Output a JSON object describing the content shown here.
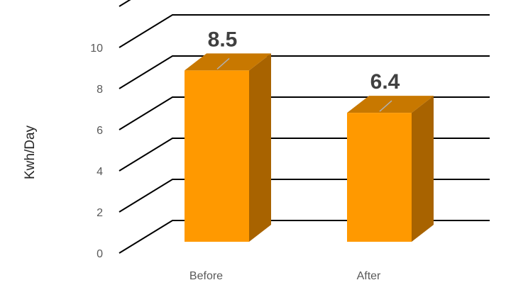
{
  "chart_data": {
    "type": "bar",
    "style": "3d-column",
    "categories": [
      "Before",
      "After"
    ],
    "values": [
      8.5,
      6.4
    ],
    "data_labels": [
      "8.5",
      "6.4"
    ],
    "title": "",
    "xlabel": "",
    "ylabel": "Kwh/Day",
    "ylim": [
      0,
      10
    ],
    "yticks": [
      0,
      2,
      4,
      6,
      8,
      10
    ],
    "grid": true,
    "legend": "none",
    "colors": {
      "bar_front": "#FF9900",
      "bar_top": "#C87800",
      "bar_side": "#A86300",
      "gridline": "#000000",
      "tick_text": "#595959"
    }
  }
}
